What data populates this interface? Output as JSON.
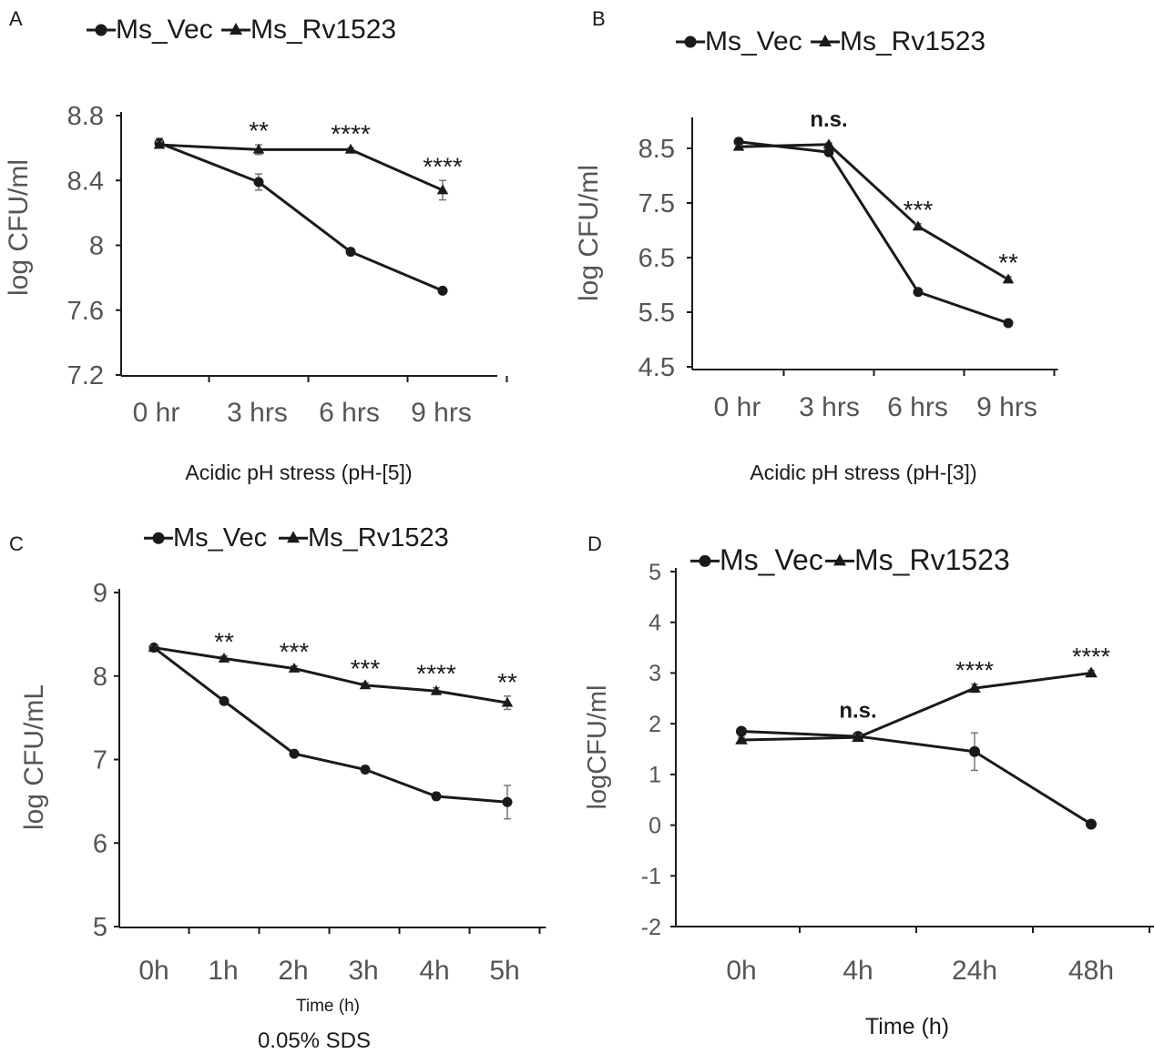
{
  "chart_data": [
    {
      "panel": "A",
      "type": "line",
      "categories": [
        "0 hr",
        "3 hrs",
        "6 hrs",
        "9 hrs"
      ],
      "series": [
        {
          "name": "Ms_Vec",
          "marker": "circle",
          "values": [
            8.63,
            8.39,
            7.96,
            7.72
          ],
          "errors": [
            0.03,
            0.05,
            0.01,
            0.01
          ]
        },
        {
          "name": "Ms_Rv1523",
          "marker": "triangle",
          "values": [
            8.62,
            8.59,
            8.59,
            8.34
          ],
          "errors": [
            0.02,
            0.03,
            0.01,
            0.06
          ]
        }
      ],
      "significance": [
        "",
        "**",
        "****",
        "****"
      ],
      "ylim": [
        7.2,
        8.8
      ],
      "yticks": [
        "7.2",
        "7.6",
        "8",
        "8.4",
        "8.8"
      ],
      "ylabel": "log CFU/ml",
      "xlabel": "Acidic pH stress (pH-[5])",
      "xlabel2": "",
      "legend": "top"
    },
    {
      "panel": "B",
      "type": "line",
      "categories": [
        "0 hr",
        "3 hrs",
        "6 hrs",
        "9 hrs"
      ],
      "series": [
        {
          "name": "Ms_Vec",
          "marker": "circle",
          "values": [
            8.62,
            8.43,
            5.87,
            5.3
          ],
          "errors": [
            0.03,
            0.03,
            0.03,
            0.03
          ]
        },
        {
          "name": "Ms_Rv1523",
          "marker": "triangle",
          "values": [
            8.53,
            8.57,
            7.07,
            6.1
          ],
          "errors": [
            0.03,
            0.03,
            0.05,
            0.05
          ]
        }
      ],
      "significance": [
        "",
        "n.s.",
        "***",
        "**"
      ],
      "ylim": [
        4.5,
        9.0
      ],
      "yticks": [
        "4.5",
        "5.5",
        "6.5",
        "7.5",
        "8.5"
      ],
      "ylabel": "log CFU/ml",
      "xlabel": "Acidic pH stress (pH-[3])",
      "xlabel2": "",
      "legend": "top"
    },
    {
      "panel": "C",
      "type": "line",
      "categories": [
        "0h",
        "1h",
        "2h",
        "3h",
        "4h",
        "5h"
      ],
      "series": [
        {
          "name": "Ms_Vec",
          "marker": "circle",
          "values": [
            8.34,
            7.7,
            7.07,
            6.88,
            6.56,
            6.49
          ],
          "errors": [
            0.02,
            0.02,
            0.02,
            0.02,
            0.04,
            0.2
          ]
        },
        {
          "name": "Ms_Rv1523",
          "marker": "triangle",
          "values": [
            8.34,
            8.21,
            8.09,
            7.89,
            7.82,
            7.68
          ],
          "errors": [
            0.02,
            0.03,
            0.03,
            0.03,
            0.04,
            0.08
          ]
        }
      ],
      "significance": [
        "",
        "**",
        "***",
        "***",
        "****",
        "**"
      ],
      "ylim": [
        5,
        9
      ],
      "yticks": [
        "5",
        "6",
        "7",
        "8",
        "9"
      ],
      "ylabel": "log CFU/mL",
      "xlabel": "Time (h)",
      "xlabel2": "0.05% SDS",
      "legend": "top-right"
    },
    {
      "panel": "D",
      "type": "line",
      "categories": [
        "0h",
        "4h",
        "24h",
        "48h"
      ],
      "series": [
        {
          "name": "Ms_Vec",
          "marker": "circle",
          "values": [
            1.85,
            1.75,
            1.45,
            0.02
          ],
          "errors": [
            0.05,
            0.05,
            0.37,
            0.05
          ]
        },
        {
          "name": "Ms_Rv1523",
          "marker": "triangle",
          "values": [
            1.68,
            1.73,
            2.7,
            3.0
          ],
          "errors": [
            0.05,
            0.05,
            0.08,
            0.05
          ]
        }
      ],
      "significance": [
        "",
        "n.s.",
        "****",
        "****"
      ],
      "ylim": [
        -2,
        5
      ],
      "yticks": [
        "-2",
        "-1",
        "0",
        "1",
        "2",
        "3",
        "4",
        "5"
      ],
      "ylabel": "logCFU/ml",
      "xlabel": "Time (h)",
      "xlabel2": "",
      "legend": "top"
    }
  ]
}
